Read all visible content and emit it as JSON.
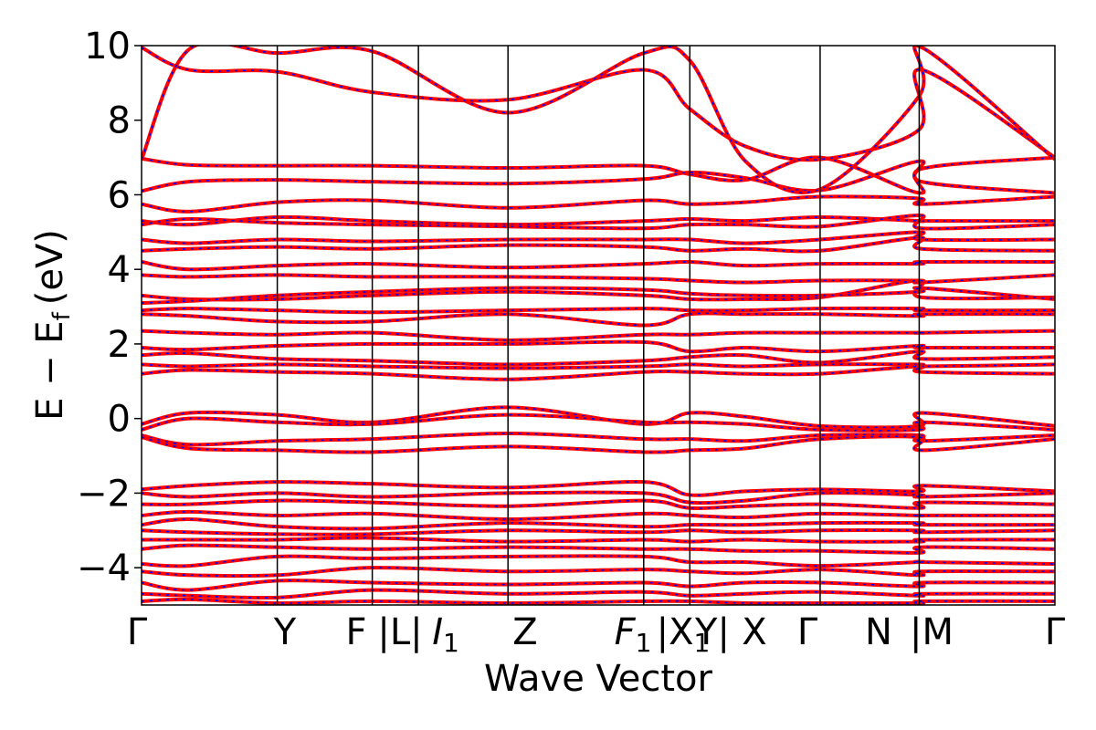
{
  "chart_data": {
    "type": "line",
    "title": "",
    "xlabel": "Wave Vector",
    "ylabel": "E − E",
    "ylabel_subscript": "f",
    "ylabel_unit": "(eV)",
    "ylim": [
      -5,
      10
    ],
    "yticks": [
      -4,
      -2,
      0,
      2,
      4,
      6,
      8,
      10
    ],
    "ytick_labels": [
      "−4",
      "−2",
      "0",
      "2",
      "4",
      "6",
      "8",
      "10"
    ],
    "grid": false,
    "legend": "none",
    "colors": {
      "series_a": "#ff0000",
      "series_b": "#0000ff",
      "kpath_line": "#000000"
    },
    "kpath": [
      {
        "label": "Γ",
        "x": 0
      },
      {
        "label": "Y",
        "x": 1.0
      },
      {
        "label": "F",
        "x": 1.7
      },
      {
        "label": "|L|",
        "x": 2.0
      },
      {
        "label": "I",
        "sub": "1",
        "x": 2.0
      },
      {
        "label": "Z",
        "x": 2.7
      },
      {
        "label": "F",
        "sub": "1",
        "x": 3.7
      },
      {
        "label": "|X",
        "sub": "1",
        "x": 4.0
      },
      {
        "label": "Y|",
        "x": 4.0
      },
      {
        "label": "X",
        "x": 4.35
      },
      {
        "label": "Γ",
        "x": 5.0
      },
      {
        "label": "N",
        "x": 5.75
      },
      {
        "label": "|M",
        "x": 5.75
      },
      {
        "label": "Γ",
        "x": 6.75
      }
    ],
    "kpath_positions": [
      0,
      1.0,
      1.7,
      2.04,
      2.7,
      3.7,
      4.04,
      5.0,
      5.73,
      6.73
    ],
    "xlim": [
      0,
      6.73
    ],
    "series": [
      {
        "values": [
          6.97,
          6.8,
          6.78,
          6.78,
          6.72,
          6.78,
          6.55,
          6.4,
          7.0,
          6.05,
          6.7,
          7.0
        ]
      },
      {
        "values": [
          6.1,
          6.35,
          6.4,
          6.35,
          6.3,
          6.42,
          6.6,
          6.45,
          6.12,
          6.9,
          6.35,
          6.05
        ]
      },
      {
        "values": [
          9.95,
          9.35,
          9.3,
          8.75,
          8.55,
          9.35,
          8.3,
          7.3,
          6.95,
          7.75,
          9.35,
          7.0
        ]
      },
      {
        "values": [
          6.95,
          9.9,
          9.8,
          9.85,
          8.2,
          9.8,
          9.6,
          6.9,
          6.15,
          8.65,
          9.95,
          6.95
        ]
      },
      {
        "values": [
          5.75,
          5.55,
          5.8,
          5.85,
          5.65,
          5.85,
          5.75,
          5.8,
          5.95,
          5.9,
          5.75,
          5.95
        ]
      },
      {
        "values": [
          5.3,
          5.2,
          5.4,
          5.3,
          5.2,
          5.3,
          5.35,
          5.3,
          5.4,
          5.3,
          5.3,
          5.3
        ]
      },
      {
        "values": [
          5.2,
          5.35,
          5.25,
          5.2,
          5.15,
          5.1,
          5.2,
          5.2,
          5.15,
          5.45,
          5.1,
          5.2
        ]
      },
      {
        "values": [
          4.8,
          4.7,
          4.8,
          4.75,
          4.8,
          4.8,
          4.8,
          4.7,
          4.8,
          5.0,
          4.8,
          4.8
        ]
      },
      {
        "values": [
          4.5,
          4.55,
          4.6,
          4.55,
          4.65,
          4.6,
          4.5,
          4.55,
          4.5,
          4.85,
          4.55,
          4.5
        ]
      },
      {
        "values": [
          4.2,
          4.0,
          4.1,
          4.15,
          4.05,
          4.15,
          4.2,
          4.1,
          4.15,
          4.15,
          4.2,
          4.2
        ]
      },
      {
        "values": [
          3.85,
          3.8,
          3.85,
          3.8,
          3.8,
          3.75,
          3.7,
          3.65,
          3.7,
          3.7,
          3.65,
          3.85
        ]
      },
      {
        "values": [
          3.3,
          3.2,
          3.2,
          3.3,
          3.4,
          3.3,
          3.2,
          3.2,
          3.25,
          3.7,
          3.25,
          3.25
        ]
      },
      {
        "values": [
          3.1,
          3.15,
          3.3,
          3.4,
          3.5,
          3.45,
          3.35,
          3.3,
          3.3,
          3.4,
          3.5,
          3.2
        ]
      },
      {
        "values": [
          2.9,
          2.95,
          2.9,
          2.85,
          2.9,
          2.95,
          2.9,
          2.9,
          2.95,
          2.95,
          2.9,
          2.9
        ]
      },
      {
        "values": [
          2.8,
          2.75,
          2.6,
          2.6,
          2.8,
          2.5,
          2.8,
          2.8,
          2.8,
          2.75,
          2.8,
          2.8
        ]
      },
      {
        "values": [
          2.35,
          2.3,
          2.25,
          2.3,
          2.1,
          2.25,
          2.25,
          2.3,
          2.3,
          2.3,
          2.3,
          2.35
        ]
      },
      {
        "values": [
          1.9,
          1.85,
          1.95,
          2.0,
          2.0,
          2.05,
          1.8,
          1.9,
          1.8,
          1.95,
          1.9,
          1.9
        ]
      },
      {
        "values": [
          1.7,
          1.75,
          1.6,
          1.55,
          1.45,
          1.55,
          1.65,
          1.7,
          1.5,
          1.8,
          1.6,
          1.65
        ]
      },
      {
        "values": [
          1.45,
          1.4,
          1.45,
          1.4,
          1.35,
          1.4,
          1.45,
          1.4,
          1.45,
          1.45,
          1.4,
          1.45
        ]
      },
      {
        "values": [
          1.2,
          1.3,
          1.25,
          1.2,
          1.05,
          1.25,
          1.25,
          1.2,
          1.2,
          1.4,
          1.25,
          1.2
        ]
      },
      {
        "values": [
          -0.15,
          0.15,
          0.1,
          -0.1,
          0.3,
          -0.15,
          0.15,
          0.05,
          -0.2,
          -0.2,
          0.15,
          -0.2
        ]
      },
      {
        "values": [
          -0.3,
          0.0,
          -0.1,
          -0.15,
          0.1,
          -0.1,
          -0.1,
          -0.15,
          -0.3,
          -0.3,
          -0.1,
          -0.3
        ]
      },
      {
        "values": [
          -0.45,
          -0.7,
          -0.6,
          -0.55,
          -0.4,
          -0.55,
          -0.55,
          -0.6,
          -0.45,
          -0.45,
          -0.6,
          -0.45
        ]
      },
      {
        "values": [
          -0.5,
          -0.8,
          -0.85,
          -0.9,
          -0.75,
          -0.9,
          -0.85,
          -0.8,
          -0.55,
          -0.5,
          -0.85,
          -0.55
        ]
      },
      {
        "values": [
          -1.9,
          -1.8,
          -1.7,
          -1.75,
          -1.85,
          -1.7,
          -2.05,
          -1.95,
          -1.9,
          -1.95,
          -1.8,
          -1.95
        ]
      },
      {
        "values": [
          -2.0,
          -2.1,
          -2.0,
          -2.1,
          -2.0,
          -2.0,
          -2.25,
          -2.2,
          -2.0,
          -2.05,
          -2.1,
          -2.0
        ]
      },
      {
        "values": [
          -2.3,
          -2.3,
          -2.2,
          -2.25,
          -2.35,
          -2.2,
          -2.4,
          -2.35,
          -2.3,
          -2.4,
          -2.25,
          -2.3
        ]
      },
      {
        "values": [
          -2.6,
          -2.5,
          -2.6,
          -2.55,
          -2.7,
          -2.55,
          -2.6,
          -2.65,
          -2.55,
          -2.6,
          -2.6,
          -2.6
        ]
      },
      {
        "values": [
          -2.85,
          -2.7,
          -2.9,
          -2.95,
          -2.8,
          -2.9,
          -2.85,
          -2.85,
          -2.8,
          -2.8,
          -2.85,
          -2.85
        ]
      },
      {
        "values": [
          -3.0,
          -3.05,
          -3.1,
          -3.1,
          -3.0,
          -3.05,
          -3.0,
          -3.05,
          -3.0,
          -3.0,
          -3.05,
          -3.0
        ]
      },
      {
        "values": [
          -3.25,
          -3.25,
          -3.25,
          -3.2,
          -3.3,
          -3.25,
          -3.3,
          -3.25,
          -3.3,
          -3.3,
          -3.25,
          -3.25
        ]
      },
      {
        "values": [
          -3.5,
          -3.4,
          -3.45,
          -3.5,
          -3.45,
          -3.5,
          -3.5,
          -3.55,
          -3.55,
          -3.6,
          -3.45,
          -3.5
        ]
      },
      {
        "values": [
          -3.9,
          -3.95,
          -3.7,
          -3.75,
          -3.7,
          -3.7,
          -3.85,
          -3.85,
          -3.95,
          -3.85,
          -3.85,
          -3.9
        ]
      },
      {
        "values": [
          -4.1,
          -4.2,
          -4.2,
          -4.0,
          -4.1,
          -4.05,
          -4.1,
          -4.15,
          -4.05,
          -4.2,
          -4.1,
          -4.1
        ]
      },
      {
        "values": [
          -4.4,
          -4.6,
          -4.35,
          -4.4,
          -4.45,
          -4.4,
          -4.5,
          -4.4,
          -4.4,
          -4.5,
          -4.4,
          -4.4
        ]
      },
      {
        "values": [
          -4.7,
          -4.75,
          -4.8,
          -4.6,
          -4.7,
          -4.65,
          -4.75,
          -4.7,
          -4.65,
          -4.75,
          -4.7,
          -4.7
        ]
      },
      {
        "values": [
          -4.9,
          -4.85,
          -4.95,
          -4.9,
          -4.95,
          -4.9,
          -4.9,
          -4.95,
          -4.95,
          -4.95,
          -4.9,
          -4.9
        ]
      }
    ],
    "band_x": [
      0,
      0.35,
      1.0,
      1.7,
      2.7,
      3.7,
      4.04,
      4.45,
      5.0,
      5.73,
      5.75,
      6.73
    ]
  }
}
